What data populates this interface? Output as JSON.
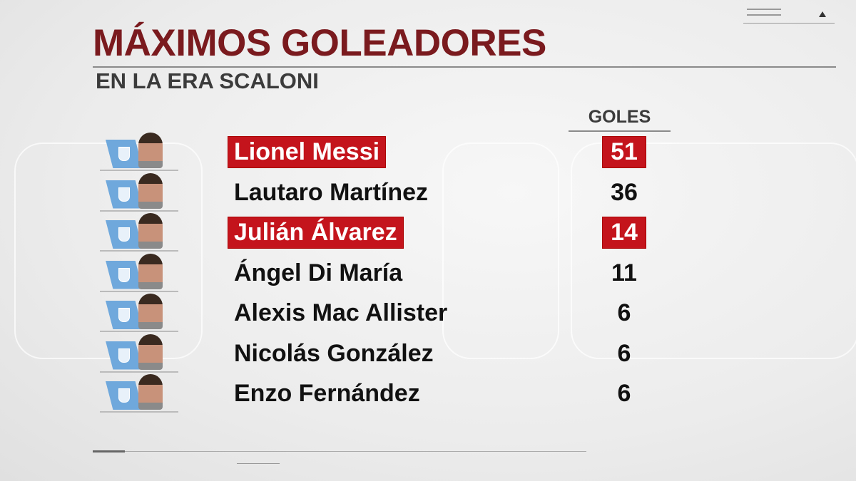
{
  "title": "MÁXIMOS GOLEADORES",
  "subtitle": "EN LA ERA SCALONI",
  "column_header": "GOLES",
  "highlight_color": "#c4141c",
  "title_color": "#7a1a1e",
  "players": [
    {
      "name": "Lionel Messi",
      "goals": "51",
      "highlighted": true
    },
    {
      "name": "Lautaro Martínez",
      "goals": "36",
      "highlighted": false
    },
    {
      "name": "Julián Álvarez",
      "goals": "14",
      "highlighted": true
    },
    {
      "name": "Ángel Di María",
      "goals": "11",
      "highlighted": false
    },
    {
      "name": "Alexis Mac Allister",
      "goals": "6",
      "highlighted": false
    },
    {
      "name": "Nicolás González",
      "goals": "6",
      "highlighted": false
    },
    {
      "name": "Enzo Fernández",
      "goals": "6",
      "highlighted": false
    }
  ]
}
